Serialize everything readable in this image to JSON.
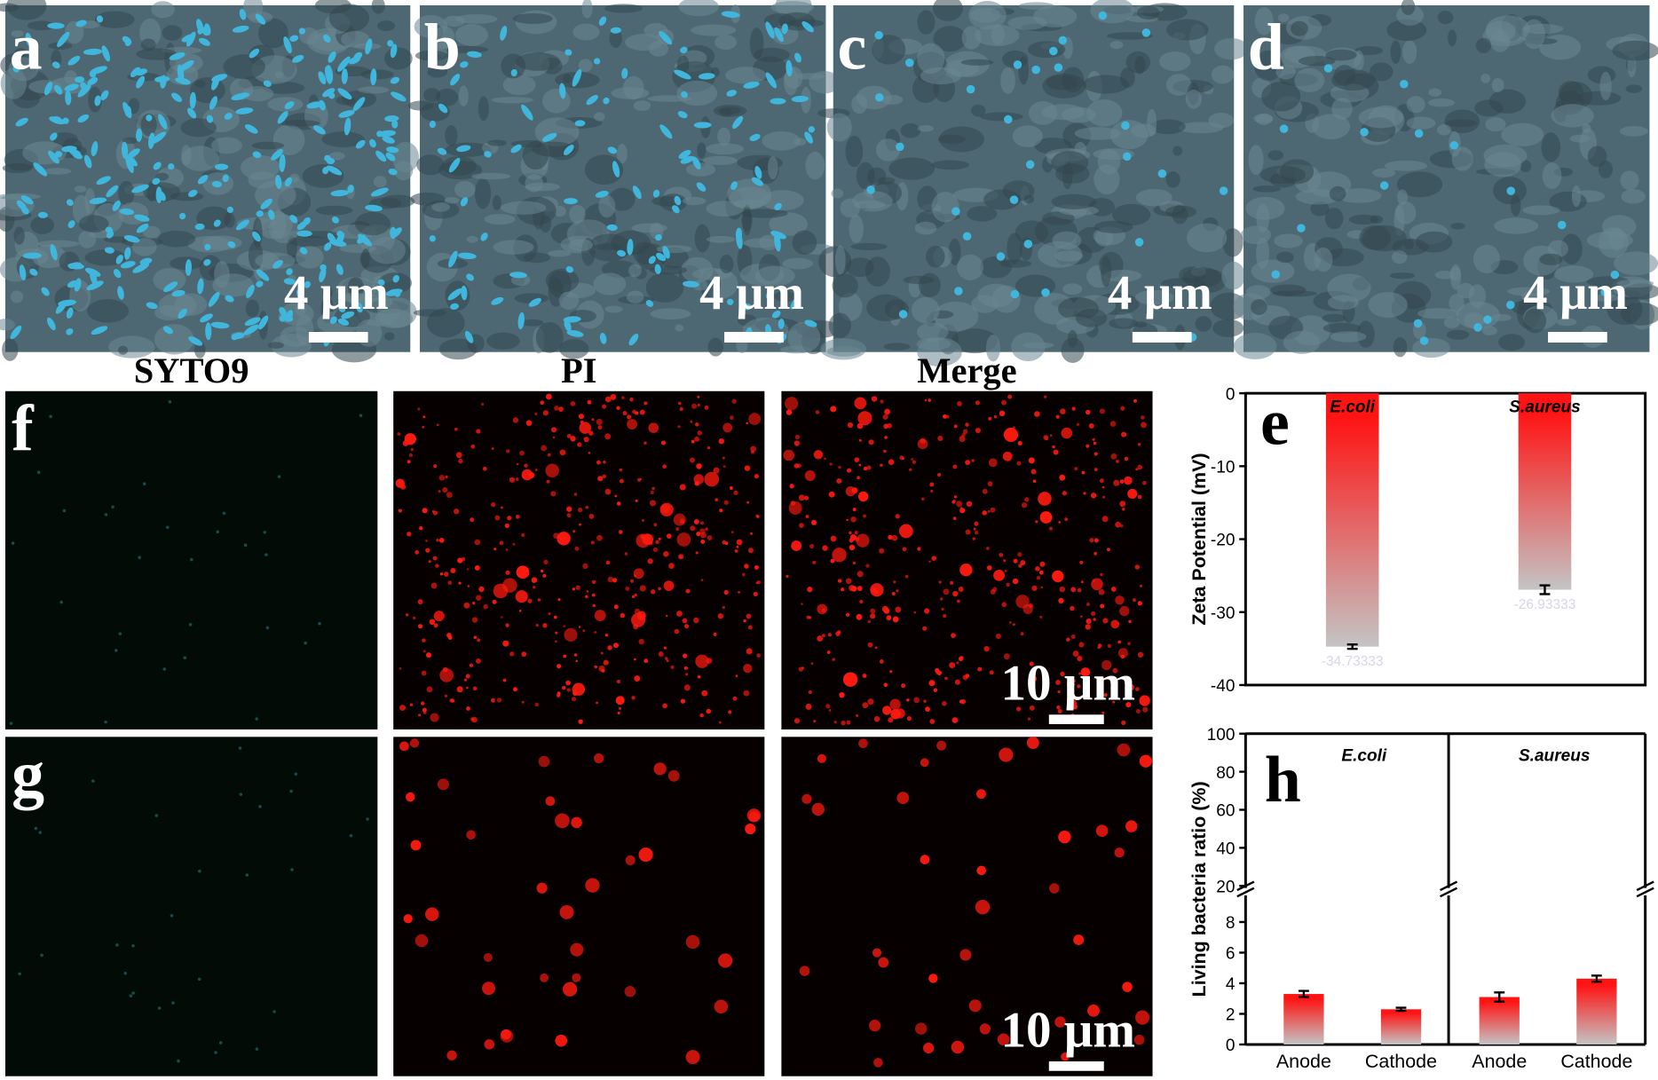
{
  "panels": [
    {
      "label": "a",
      "scale": "4 μm"
    },
    {
      "label": "b",
      "scale": "4 μm"
    },
    {
      "label": "c",
      "scale": "4 μm"
    },
    {
      "label": "d",
      "scale": "4 μm"
    }
  ],
  "fluorescence": {
    "columns": [
      "SYTO9",
      "PI",
      "Merge"
    ],
    "rows": [
      {
        "label": "f",
        "scale": "10 μm"
      },
      {
        "label": "g",
        "scale": "10 μm"
      }
    ]
  },
  "chart_data": [
    {
      "type": "bar",
      "panel_label": "e",
      "ylabel": "Zeta Potential (mV)",
      "categories": [
        "E.coli",
        "S.aureus"
      ],
      "values": [
        -34.73333,
        -26.93333
      ],
      "errors": [
        0.3,
        0.6
      ],
      "ylim": [
        -40,
        0
      ],
      "yticks": [
        0,
        -10,
        -20,
        -30,
        -40
      ],
      "colors": [
        "#ff1414",
        "#c4c4c4"
      ]
    },
    {
      "type": "bar",
      "panel_label": "h",
      "ylabel": "Living bacteria ratio (%)",
      "groups": [
        {
          "name": "E.coli",
          "categories": [
            "Anode",
            "Cathode"
          ],
          "values": [
            3.3,
            2.3
          ],
          "errors": [
            0.2,
            0.1
          ]
        },
        {
          "name": "S.aureus",
          "categories": [
            "Anode",
            "Cathode"
          ],
          "values": [
            3.1,
            4.3
          ],
          "errors": [
            0.3,
            0.2
          ]
        }
      ],
      "ylim": [
        0,
        9.6
      ],
      "yticks": [
        0,
        2,
        4,
        6,
        8
      ],
      "upper_ylim": [
        20,
        100
      ],
      "upper_yticks": [
        20,
        40,
        60,
        80,
        100
      ],
      "colors": [
        "#ff1414",
        "#c4c4c4"
      ]
    }
  ]
}
